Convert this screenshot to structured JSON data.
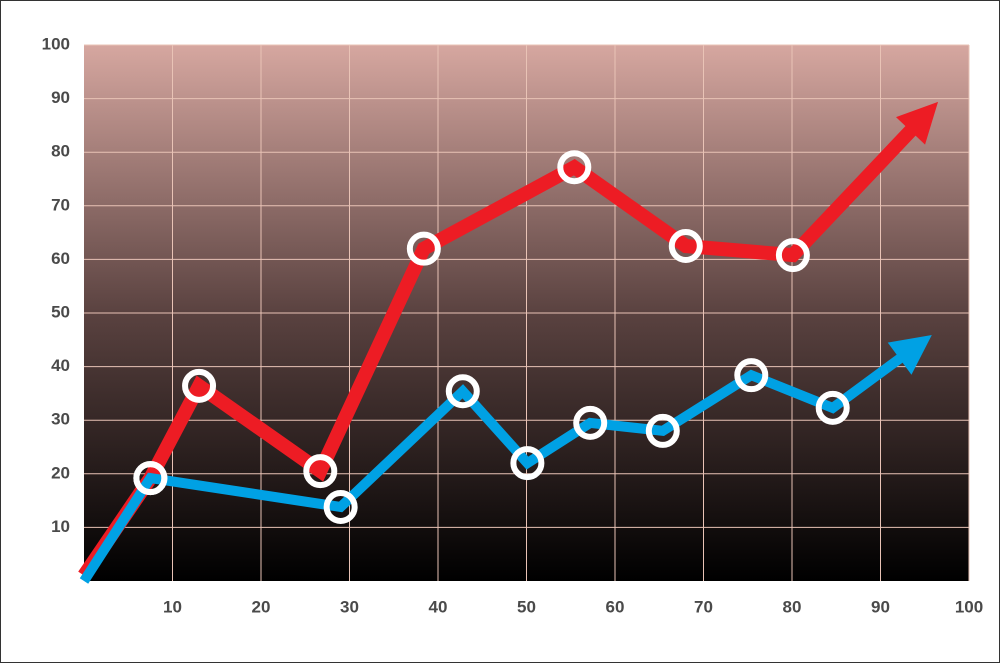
{
  "chart_data": {
    "type": "line",
    "xlim": [
      0,
      100
    ],
    "xticks": [
      10,
      20,
      30,
      40,
      50,
      60,
      70,
      80,
      90,
      100
    ],
    "ylim": [
      0,
      100
    ],
    "yticks": [
      10,
      20,
      30,
      40,
      50,
      60,
      70,
      80,
      90,
      100
    ],
    "grid": true,
    "series": [
      {
        "color": "#ed1c24",
        "x": [
          0,
          7.5,
          13,
          26.7,
          38.4,
          55.4,
          68,
          80.1,
          96.5
        ],
        "values": [
          1,
          19.2,
          36.4,
          20.5,
          62,
          77.2,
          62.5,
          60.8,
          89.4
        ]
      },
      {
        "color": "#00a1e4",
        "x": [
          0,
          7.5,
          29,
          42.8,
          50.1,
          57.2,
          65.4,
          75.4,
          84.6,
          95.8
        ],
        "values": [
          0,
          19.2,
          13.8,
          35.4,
          22,
          29.5,
          28,
          38.4,
          32.3,
          45.9
        ]
      }
    ]
  }
}
